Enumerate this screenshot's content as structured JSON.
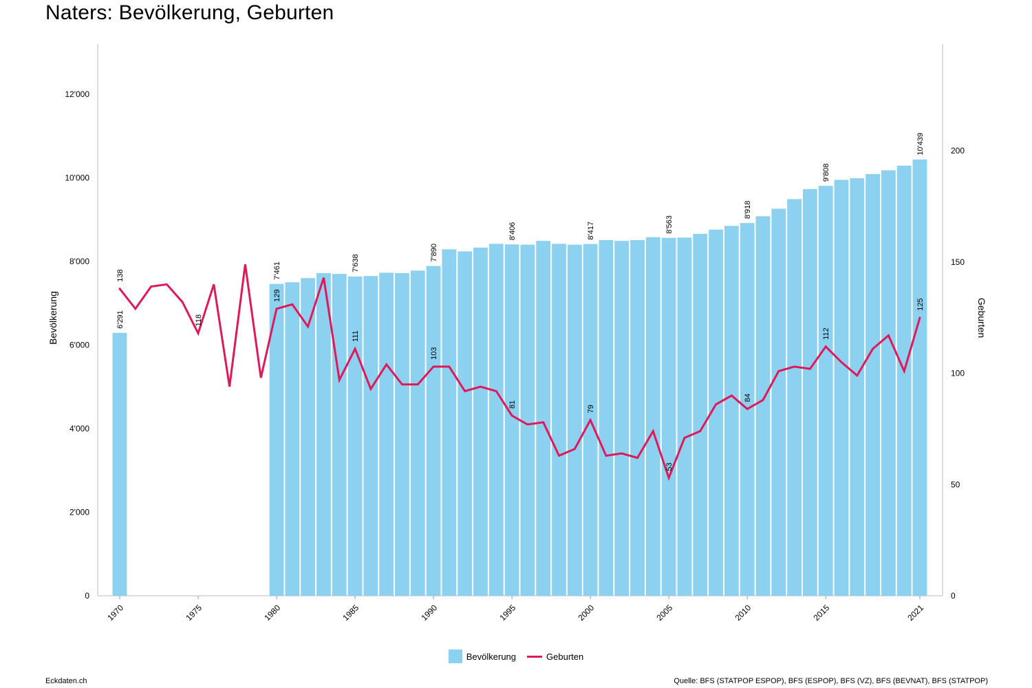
{
  "title": "Naters: Bevölkerung, Geburten",
  "footer": {
    "site": "Eckdaten.ch",
    "source": "Quelle: BFS (STATPOP ESPOP), BFS (ESPOP), BFS (VZ), BFS (BEVNAT), BFS (STATPOP)"
  },
  "legend": {
    "population": "Bevölkerung",
    "births": "Geburten"
  },
  "colors": {
    "bar": "#8dd1f0",
    "line": "#e0185a"
  },
  "chart_data": {
    "type": "bar+line",
    "title": "Naters: Bevölkerung, Geburten",
    "xlabel": "",
    "ylabel_left": "Bevölkerung",
    "ylabel_right": "Geburten",
    "ylim_left": [
      0,
      13200
    ],
    "ylim_right": [
      0,
      248
    ],
    "yticks_left": [
      0,
      2000,
      4000,
      6000,
      8000,
      10000,
      12000
    ],
    "yticks_left_labels": [
      "0",
      "2'000",
      "4'000",
      "6'000",
      "8'000",
      "10'000",
      "12'000"
    ],
    "yticks_right": [
      0,
      50,
      100,
      150,
      200
    ],
    "xtick_labels": [
      "1970",
      "1975",
      "1980",
      "1985",
      "1990",
      "1995",
      "2000",
      "2005",
      "2010",
      "2015",
      "2021"
    ],
    "legend_position": "bottom",
    "series": [
      {
        "name": "Bevölkerung",
        "type": "bar",
        "axis": "left",
        "x": [
          1970,
          1980,
          1981,
          1982,
          1983,
          1984,
          1985,
          1986,
          1987,
          1988,
          1989,
          1990,
          1991,
          1992,
          1993,
          1994,
          1995,
          1996,
          1997,
          1998,
          1999,
          2000,
          2001,
          2002,
          2003,
          2004,
          2005,
          2006,
          2007,
          2008,
          2009,
          2010,
          2011,
          2012,
          2013,
          2014,
          2015,
          2016,
          2017,
          2018,
          2019,
          2020,
          2021
        ],
        "values": [
          6291,
          7461,
          7500,
          7600,
          7720,
          7700,
          7638,
          7650,
          7730,
          7720,
          7780,
          7890,
          8290,
          8240,
          8330,
          8420,
          8406,
          8400,
          8490,
          8420,
          8400,
          8417,
          8510,
          8490,
          8510,
          8580,
          8563,
          8570,
          8660,
          8760,
          8850,
          8918,
          9080,
          9260,
          9490,
          9730,
          9808,
          9950,
          9990,
          10090,
          10180,
          10290,
          10439
        ]
      },
      {
        "name": "Geburten",
        "type": "line",
        "axis": "right",
        "x": [
          1970,
          1971,
          1972,
          1973,
          1974,
          1975,
          1976,
          1977,
          1978,
          1979,
          1980,
          1981,
          1982,
          1983,
          1984,
          1985,
          1986,
          1987,
          1988,
          1989,
          1990,
          1991,
          1992,
          1993,
          1994,
          1995,
          1996,
          1997,
          1998,
          1999,
          2000,
          2001,
          2002,
          2003,
          2004,
          2005,
          2006,
          2007,
          2008,
          2009,
          2010,
          2011,
          2012,
          2013,
          2014,
          2015,
          2016,
          2017,
          2018,
          2019,
          2020,
          2021
        ],
        "values": [
          138,
          129,
          139,
          140,
          132,
          118,
          140,
          94,
          149,
          98,
          129,
          131,
          121,
          143,
          97,
          111,
          93,
          104,
          95,
          95,
          103,
          103,
          92,
          94,
          92,
          81,
          77,
          78,
          63,
          66,
          79,
          63,
          64,
          62,
          74,
          53,
          71,
          74,
          86,
          90,
          84,
          88,
          101,
          103,
          102,
          112,
          105,
          99,
          111,
          117,
          101,
          125
        ]
      }
    ],
    "bar_labels": [
      {
        "x": 1970,
        "text": "6'291"
      },
      {
        "x": 1980,
        "text": "7'461"
      },
      {
        "x": 1985,
        "text": "7'638"
      },
      {
        "x": 1990,
        "text": "7'890"
      },
      {
        "x": 1995,
        "text": "8'406"
      },
      {
        "x": 2000,
        "text": "8'417"
      },
      {
        "x": 2005,
        "text": "8'563"
      },
      {
        "x": 2010,
        "text": "8'918"
      },
      {
        "x": 2015,
        "text": "9'808"
      },
      {
        "x": 2021,
        "text": "10'439"
      }
    ],
    "line_labels": [
      {
        "x": 1970,
        "text": "138"
      },
      {
        "x": 1975,
        "text": "118"
      },
      {
        "x": 1980,
        "text": "129"
      },
      {
        "x": 1985,
        "text": "111"
      },
      {
        "x": 1990,
        "text": "103"
      },
      {
        "x": 1995,
        "text": "81"
      },
      {
        "x": 2000,
        "text": "79"
      },
      {
        "x": 2005,
        "text": "53"
      },
      {
        "x": 2010,
        "text": "84"
      },
      {
        "x": 2015,
        "text": "112"
      },
      {
        "x": 2021,
        "text": "125"
      }
    ]
  }
}
